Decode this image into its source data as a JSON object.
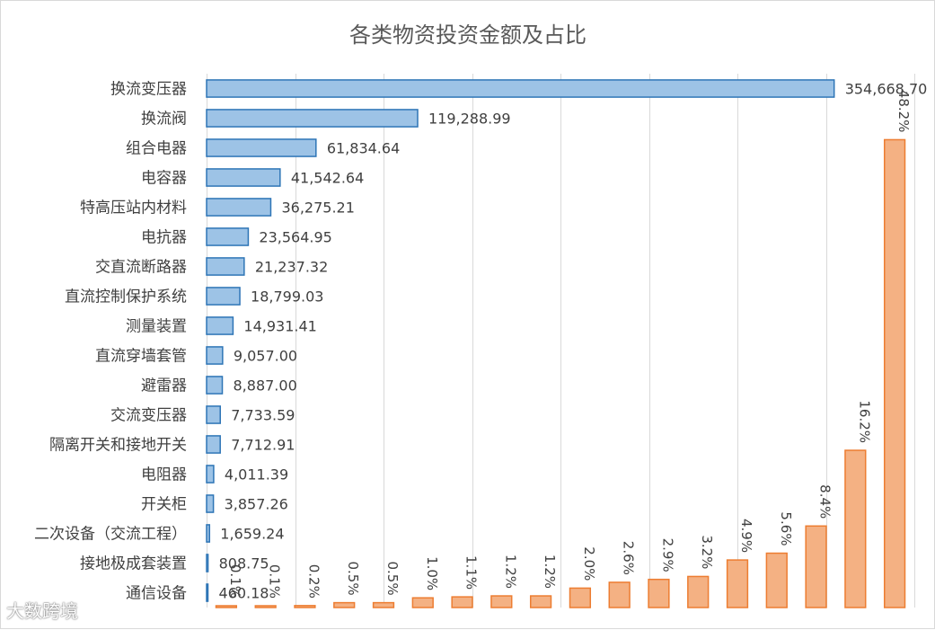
{
  "watermark": "大数跨境",
  "chart_data": {
    "type": "bar",
    "title": "各类物资投资金额及占比",
    "categories": [
      "换流变压器",
      "换流阀",
      "组合电器",
      "电容器",
      "特高压站内材料",
      "电抗器",
      "交直流断路器",
      "直流控制保护系统",
      "测量装置",
      "直流穿墙套管",
      "避雷器",
      "交流变压器",
      "隔离开关和接地开关",
      "电阻器",
      "开关柜",
      "二次设备（交流工程）",
      "接地极成套装置",
      "通信设备"
    ],
    "value_labels": [
      "354,668.70",
      "119,288.99",
      "61,834.64",
      "41,542.64",
      "36,275.21",
      "23,564.95",
      "21,237.32",
      "18,799.03",
      "14,931.41",
      "9,057.00",
      "8,887.00",
      "7,733.59",
      "7,712.91",
      "4,011.39",
      "3,857.26",
      "1,659.24",
      "808.75",
      "460.18"
    ],
    "series": [
      {
        "orientation": "horizontal",
        "color": "#9DC3E6",
        "edge_color": "#2E75B6",
        "values": [
          354668.7,
          119288.99,
          61834.64,
          41542.64,
          36275.21,
          23564.95,
          21237.32,
          18799.03,
          14931.41,
          9057.0,
          8887.0,
          7733.59,
          7712.91,
          4011.39,
          3857.26,
          1659.24,
          808.75,
          460.18
        ]
      },
      {
        "orientation": "vertical",
        "color": "#F4B183",
        "edge_color": "#ED7D31",
        "values": [
          0.1,
          0.1,
          0.2,
          0.5,
          0.5,
          1.0,
          1.1,
          1.2,
          1.2,
          2.0,
          2.6,
          2.9,
          3.2,
          4.9,
          5.6,
          8.4,
          16.2,
          48.2
        ],
        "labels": [
          "0.1%",
          "0.1%",
          "0.2%",
          "0.5%",
          "0.5%",
          "1.0%",
          "1.1%",
          "1.2%",
          "1.2%",
          "2.0%",
          "2.6%",
          "2.9%",
          "3.2%",
          "4.9%",
          "5.6%",
          "8.4%",
          "16.2%",
          "48.2%"
        ]
      }
    ],
    "xlim": [
      0,
      400000
    ],
    "pct_lim": [
      0,
      55
    ],
    "grid": true,
    "legend": "none"
  }
}
